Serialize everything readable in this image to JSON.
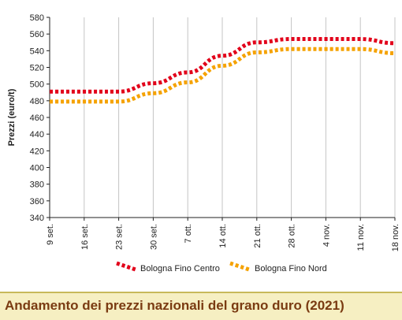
{
  "footer_title": "Andamento dei prezzi nazionali del grano duro (2021)",
  "chart_data": {
    "type": "line",
    "title": "",
    "ylabel": "Prezzi (euro/t)",
    "xlabel": "",
    "ylim": [
      340,
      580
    ],
    "yticks": [
      340,
      360,
      380,
      400,
      420,
      440,
      460,
      480,
      500,
      520,
      540,
      560,
      580
    ],
    "categories": [
      "9 set.",
      "16 set.",
      "23 set.",
      "30 set.",
      "7 ott.",
      "14 ott.",
      "21 ott.",
      "28 ott.",
      "4 nov.",
      "11 nov.",
      "18 nov."
    ],
    "series": [
      {
        "name": "Bologna Fino Centro",
        "color": "#e2001a",
        "values": [
          491,
          491,
          491,
          501,
          514,
          534,
          550,
          554,
          554,
          554,
          549
        ]
      },
      {
        "name": "Bologna Fino Nord",
        "color": "#f5a200",
        "values": [
          479,
          479,
          479,
          489,
          502,
          522,
          538,
          542,
          542,
          542,
          537
        ]
      }
    ],
    "grid": "vertical",
    "legend": "bottom",
    "line_style": "dotted"
  }
}
